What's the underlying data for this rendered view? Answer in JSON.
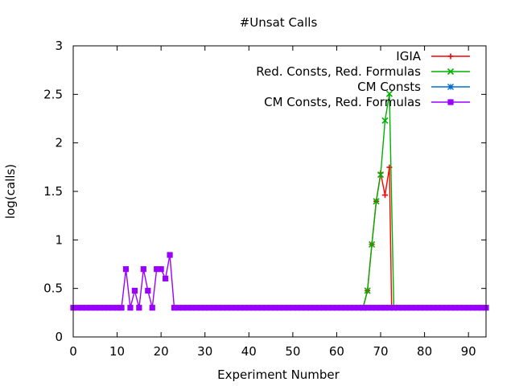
{
  "chart_data": {
    "type": "line",
    "title": "#Unsat Calls",
    "xlabel": "Experiment Number",
    "ylabel": "log(calls)",
    "xlim": [
      0,
      94
    ],
    "ylim": [
      0,
      3
    ],
    "xticks": [
      0,
      10,
      20,
      30,
      40,
      50,
      60,
      70,
      80,
      90
    ],
    "yticks": [
      0,
      0.5,
      1,
      1.5,
      2,
      2.5,
      3
    ],
    "xtick_labels": [
      "0",
      "10",
      "20",
      "30",
      "40",
      "50",
      "60",
      "70",
      "80",
      "90"
    ],
    "ytick_labels": [
      "0",
      "0.5",
      "1",
      "1.5",
      "2",
      "2.5",
      "3"
    ],
    "grid": false,
    "legend_position": "top-right",
    "series": [
      {
        "name": "IGIA",
        "color": "#ff0000",
        "marker": "plus",
        "points": [
          [
            66,
            0.301
          ],
          [
            67,
            0.477
          ],
          [
            68,
            0.954
          ],
          [
            69,
            1.398
          ],
          [
            70,
            1.69
          ],
          [
            71,
            1.462
          ],
          [
            72,
            1.748
          ],
          [
            72.5,
            0.301
          ]
        ]
      },
      {
        "name": "Red. Consts, Red. Formulas",
        "color": "#00b000",
        "marker": "x",
        "points": [
          [
            66,
            0.301
          ],
          [
            67,
            0.477
          ],
          [
            68,
            0.954
          ],
          [
            69,
            1.398
          ],
          [
            70,
            1.672
          ],
          [
            71,
            2.23
          ],
          [
            72,
            2.505
          ],
          [
            73,
            0.301
          ]
        ]
      },
      {
        "name": "CM Consts",
        "color": "#0070d0",
        "marker": "star",
        "points": []
      },
      {
        "name": "CM Consts, Red. Formulas",
        "color": "#9a00ff",
        "marker": "square",
        "baseline": 0.301,
        "points": [
          [
            11,
            0.301
          ],
          [
            12,
            0.699
          ],
          [
            13,
            0.301
          ],
          [
            14,
            0.477
          ],
          [
            15,
            0.301
          ],
          [
            16,
            0.699
          ],
          [
            17,
            0.477
          ],
          [
            18,
            0.301
          ],
          [
            19,
            0.699
          ],
          [
            20,
            0.699
          ],
          [
            21,
            0.602
          ],
          [
            22,
            0.845
          ],
          [
            23,
            0.301
          ]
        ]
      }
    ]
  }
}
